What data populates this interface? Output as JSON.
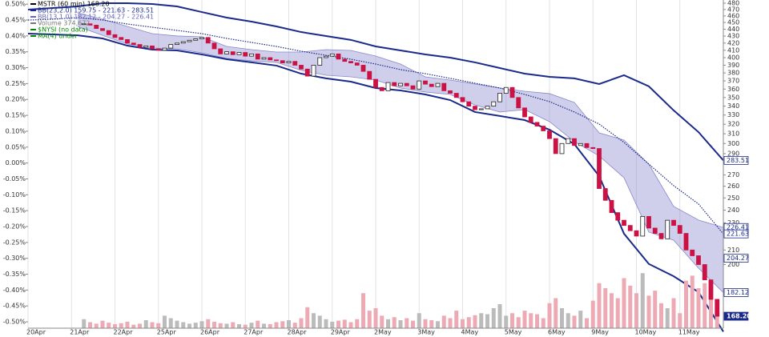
{
  "chart_data": {
    "type": "candlestick",
    "legend": [
      "MSTR (60 min) 168.20",
      "BB(23,2.0) 159.75 - 221.63 - 283.51",
      "BB(13,1.0) 182.12 - 204.27 - 226.41",
      "Volume 374,672",
      "$NYSI (no data)",
      "MA(4) under"
    ],
    "legend_colors": [
      "#000000",
      "#1a2a8a",
      "#6666bb",
      "#777777",
      "#008800",
      "#008800"
    ],
    "xlim": [
      0,
      112
    ],
    "xticks": [
      {
        "value": 0,
        "label": "20Apr"
      },
      {
        "value": 7,
        "label": "21Apr"
      },
      {
        "value": 14,
        "label": "22Apr"
      },
      {
        "value": 21,
        "label": "25Apr"
      },
      {
        "value": 28,
        "label": "26Apr"
      },
      {
        "value": 35,
        "label": "27Apr"
      },
      {
        "value": 42,
        "label": "28Apr"
      },
      {
        "value": 49,
        "label": "29Apr"
      },
      {
        "value": 56,
        "label": "2May"
      },
      {
        "value": 63,
        "label": "3May"
      },
      {
        "value": 70,
        "label": "4May"
      },
      {
        "value": 77,
        "label": "5May"
      },
      {
        "value": 84,
        "label": "6May"
      },
      {
        "value": 91,
        "label": "9May"
      },
      {
        "value": 98,
        "label": "10May"
      },
      {
        "value": 105,
        "label": "11May"
      }
    ],
    "x": [
      9,
      10,
      11,
      12,
      13,
      14,
      15,
      16,
      17,
      18,
      19,
      20,
      21,
      22,
      23,
      24,
      25,
      26,
      27,
      28,
      29,
      30,
      31,
      32,
      33,
      34,
      35,
      36,
      37,
      38,
      39,
      40,
      41,
      42,
      43,
      44,
      45,
      46,
      47,
      48,
      49,
      50,
      51,
      52,
      53,
      54,
      55,
      56,
      57,
      58,
      59,
      60,
      61,
      62,
      63,
      64,
      65,
      66,
      67,
      68,
      69,
      70,
      71,
      72,
      73,
      74,
      75,
      76,
      77,
      78,
      79,
      80,
      81,
      82,
      83,
      84,
      85,
      86,
      87,
      88,
      89,
      90,
      91,
      92,
      93,
      94,
      95,
      96,
      97,
      98,
      99,
      100,
      101,
      102,
      103,
      104,
      105,
      106,
      107,
      108,
      109,
      110,
      111
    ],
    "close": [
      448,
      446,
      441,
      438,
      432,
      428,
      425,
      420,
      418,
      414,
      416,
      412,
      410,
      413,
      418,
      420,
      422,
      424,
      426,
      428,
      420,
      412,
      405,
      408,
      404,
      407,
      402,
      405,
      398,
      400,
      397,
      396,
      393,
      395,
      390,
      385,
      376,
      390,
      400,
      402,
      405,
      398,
      395,
      393,
      390,
      382,
      372,
      362,
      358,
      368,
      364,
      367,
      364,
      360,
      370,
      366,
      363,
      367,
      358,
      355,
      350,
      345,
      340,
      336,
      337,
      340,
      345,
      355,
      362,
      350,
      338,
      328,
      322,
      318,
      313,
      305,
      290,
      300,
      305,
      298,
      300,
      296,
      295,
      258,
      248,
      238,
      232,
      228,
      224,
      220,
      235,
      226,
      222,
      218,
      232,
      228,
      222,
      210,
      206,
      200,
      190,
      178,
      168.2
    ],
    "volume": [
      180000,
      120000,
      90000,
      150000,
      110000,
      80000,
      100000,
      130000,
      70000,
      90000,
      160000,
      120000,
      100000,
      250000,
      200000,
      150000,
      120000,
      90000,
      110000,
      140000,
      180000,
      130000,
      100000,
      90000,
      120000,
      80000,
      70000,
      110000,
      150000,
      90000,
      80000,
      120000,
      140000,
      160000,
      110000,
      200000,
      420000,
      300000,
      250000,
      180000,
      130000,
      150000,
      170000,
      120000,
      180000,
      700000,
      350000,
      400000,
      250000,
      180000,
      220000,
      160000,
      200000,
      150000,
      300000,
      180000,
      160000,
      140000,
      250000,
      200000,
      350000,
      180000,
      220000,
      260000,
      300000,
      280000,
      400000,
      480000,
      250000,
      300000,
      220000,
      350000,
      300000,
      280000,
      200000,
      500000,
      600000,
      400000,
      300000,
      250000,
      350000,
      200000,
      550000,
      900000,
      800000,
      700000,
      600000,
      1000000,
      850000,
      700000,
      1100000,
      650000,
      750000,
      500000,
      400000,
      600000,
      300000,
      950000,
      1050000,
      800000,
      900000,
      700000,
      374672
    ],
    "volume_lim": [
      0,
      1600000
    ],
    "y2_log": true,
    "y2lim": [
      161.6,
      485.2
    ],
    "y2ticks": [
      480,
      470,
      460,
      450,
      440,
      430,
      420,
      410,
      400,
      390,
      380,
      370,
      360,
      350,
      340,
      330,
      320,
      310,
      300,
      290,
      270,
      260,
      250,
      240,
      230,
      210,
      200
    ],
    "ylim": [
      -0.52,
      0.513
    ],
    "yticks": [
      {
        "value": 0.5,
        "label": "0.50%"
      },
      {
        "value": 0.45,
        "label": "0.45%"
      },
      {
        "value": 0.4,
        "label": "0.40%"
      },
      {
        "value": 0.35,
        "label": "0.35%"
      },
      {
        "value": 0.3,
        "label": "0.30%"
      },
      {
        "value": 0.25,
        "label": "0.25%"
      },
      {
        "value": 0.2,
        "label": "0.20%"
      },
      {
        "value": 0.15,
        "label": "0.15%"
      },
      {
        "value": 0.1,
        "label": "0.10%"
      },
      {
        "value": 0.05,
        "label": "0.05%"
      },
      {
        "value": 0,
        "label": "0.00%"
      },
      {
        "value": -0.05,
        "label": "-0.05%"
      },
      {
        "value": -0.1,
        "label": "-0.10%"
      },
      {
        "value": -0.15,
        "label": "-0.15%"
      },
      {
        "value": -0.2,
        "label": "-0.20%"
      },
      {
        "value": -0.25,
        "label": "-0.25%"
      },
      {
        "value": -0.3,
        "label": "-0.30%"
      },
      {
        "value": -0.35,
        "label": "-0.35%"
      },
      {
        "value": -0.4,
        "label": "-0.40%"
      },
      {
        "value": -0.45,
        "label": "-0.45%"
      },
      {
        "value": -0.5,
        "label": "-0.50%"
      }
    ],
    "bands": {
      "x": [
        0,
        4,
        8,
        12,
        16,
        20,
        24,
        28,
        32,
        36,
        40,
        44,
        48,
        52,
        56,
        60,
        64,
        68,
        72,
        76,
        80,
        84,
        88,
        92,
        96,
        100,
        104,
        108,
        112
      ],
      "upper": [
        469.8,
        472.3,
        474.9,
        480,
        480,
        478.7,
        474.9,
        466.0,
        457.4,
        451.3,
        444.1,
        435.8,
        430.1,
        424.5,
        415.3,
        409.8,
        404.3,
        400.0,
        393.7,
        386.3,
        379.1,
        375.1,
        373.2,
        366.2,
        377.1,
        363.3,
        335.2,
        311.7,
        283.51
      ],
      "middle": [
        453.7,
        454.9,
        457.4,
        453.7,
        447.7,
        442.9,
        438.2,
        433.5,
        426.6,
        420.9,
        415.3,
        408.7,
        403.2,
        397.9,
        391.5,
        384.3,
        379.1,
        373.2,
        367.2,
        361.3,
        353.6,
        345.2,
        333.4,
        320.2,
        301.1,
        280.0,
        260.5,
        245.0,
        221.63
      ],
      "lower": [
        433.5,
        432.3,
        431.1,
        426.6,
        416.4,
        410.9,
        409.8,
        404.3,
        397.9,
        393.7,
        389.5,
        379.1,
        373.2,
        369.1,
        361.3,
        358.4,
        353.6,
        347.0,
        333.4,
        329.0,
        324.5,
        314.2,
        299.4,
        269.0,
        221.8,
        200.4,
        192.3,
        182.4,
        159.75
      ]
    },
    "inner_band": {
      "x": [
        8,
        12,
        16,
        20,
        24,
        28,
        32,
        36,
        40,
        44,
        48,
        52,
        56,
        60,
        64,
        68,
        72,
        76,
        80,
        84,
        88,
        92,
        96,
        100,
        104,
        108,
        112
      ],
      "upper": [
        464.8,
        454.9,
        444.1,
        433.5,
        430.1,
        428.9,
        415.3,
        410.9,
        407.6,
        407.6,
        410.9,
        409.8,
        402.2,
        391.5,
        375.1,
        371.1,
        366.2,
        361.3,
        357.4,
        354.6,
        344.3,
        310.9,
        303.5,
        280.0,
        243.0,
        232.2,
        226.41
      ],
      "lower": [
        444.1,
        431.1,
        418.7,
        413.1,
        412.0,
        406.5,
        398.9,
        395.7,
        393.7,
        383.3,
        377.1,
        375.1,
        371.1,
        361.3,
        356.5,
        353.6,
        341.4,
        333.4,
        336.1,
        322.8,
        301.9,
        287.8,
        267.5,
        223.0,
        217.0,
        197.6,
        182.12
      ]
    },
    "price_tags": [
      283.51,
      226.41,
      221.63,
      204.27,
      182.12,
      {
        "value": 168.2,
        "label": "168.20"
      }
    ],
    "colors": {
      "down": "#cc1144",
      "up": "#ffffff",
      "vol_down": "#eeaab4",
      "vol_up": "#bbbbbb",
      "band": "#1a2a8a",
      "inner": "#8888cc"
    }
  }
}
